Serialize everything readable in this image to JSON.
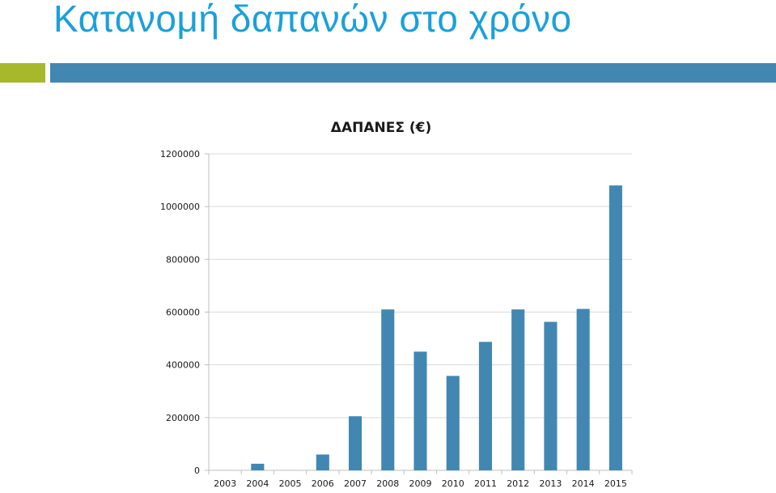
{
  "slide": {
    "title": "Κατανομή δαπανών στο χρόνο"
  },
  "colors": {
    "title": "#1aa0db",
    "accent": "#a7b92b",
    "header_bar": "#4287b2",
    "bars": "#4287b2",
    "grid": "#d9d9d9"
  },
  "chart_data": {
    "type": "bar",
    "title": "ΔΑΠΑΝΕΣ (€)",
    "xlabel": "",
    "ylabel": "",
    "categories": [
      "2003",
      "2004",
      "2005",
      "2006",
      "2007",
      "2008",
      "2009",
      "2010",
      "2011",
      "2012",
      "2013",
      "2014",
      "2015"
    ],
    "values": [
      0,
      25000,
      0,
      60000,
      205000,
      610000,
      450000,
      358000,
      487000,
      610000,
      563000,
      612000,
      1080000
    ],
    "ylim": [
      0,
      1200000
    ],
    "yticks": [
      "0",
      "200000",
      "400000",
      "600000",
      "800000",
      "1000000",
      "1200000"
    ],
    "grid": true,
    "legend": "none"
  }
}
